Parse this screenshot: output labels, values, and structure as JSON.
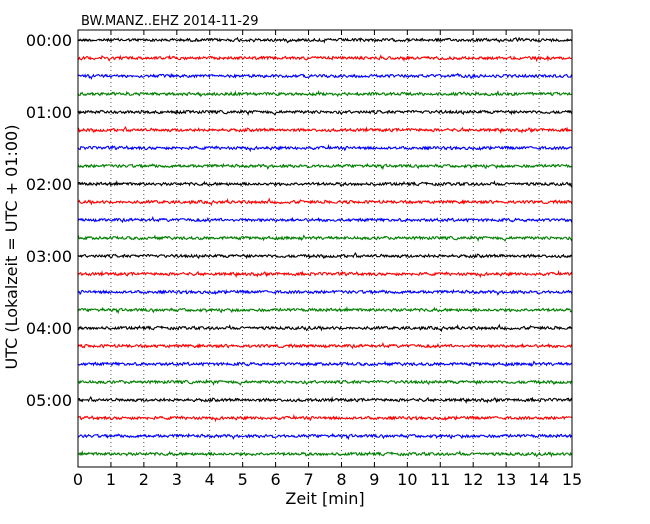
{
  "chart_data": {
    "type": "line",
    "title": "BW.MANZ..EHZ 2014-11-29",
    "xlabel": "Zeit  [min]",
    "ylabel": "UTC (Lokalzeit = UTC + 01:00)",
    "xlim": [
      0,
      15
    ],
    "x_ticks": [
      "0",
      "1",
      "2",
      "3",
      "4",
      "5",
      "6",
      "7",
      "8",
      "9",
      "10",
      "11",
      "12",
      "13",
      "14",
      "15"
    ],
    "y_ticks": [
      "00:00",
      "01:00",
      "02:00",
      "03:00",
      "04:00",
      "05:00"
    ],
    "grid": "vertical dotted at each minute",
    "series_colors_cycle": [
      "#000000",
      "#ff0000",
      "#0000ff",
      "#008000"
    ],
    "traces_start_minutes": [
      0,
      15,
      30,
      45,
      60,
      75,
      90,
      105,
      120,
      135,
      150,
      165,
      180,
      195,
      210,
      225,
      240,
      255,
      270,
      285,
      300,
      315,
      330,
      345
    ],
    "trace_duration_min": 15
  }
}
